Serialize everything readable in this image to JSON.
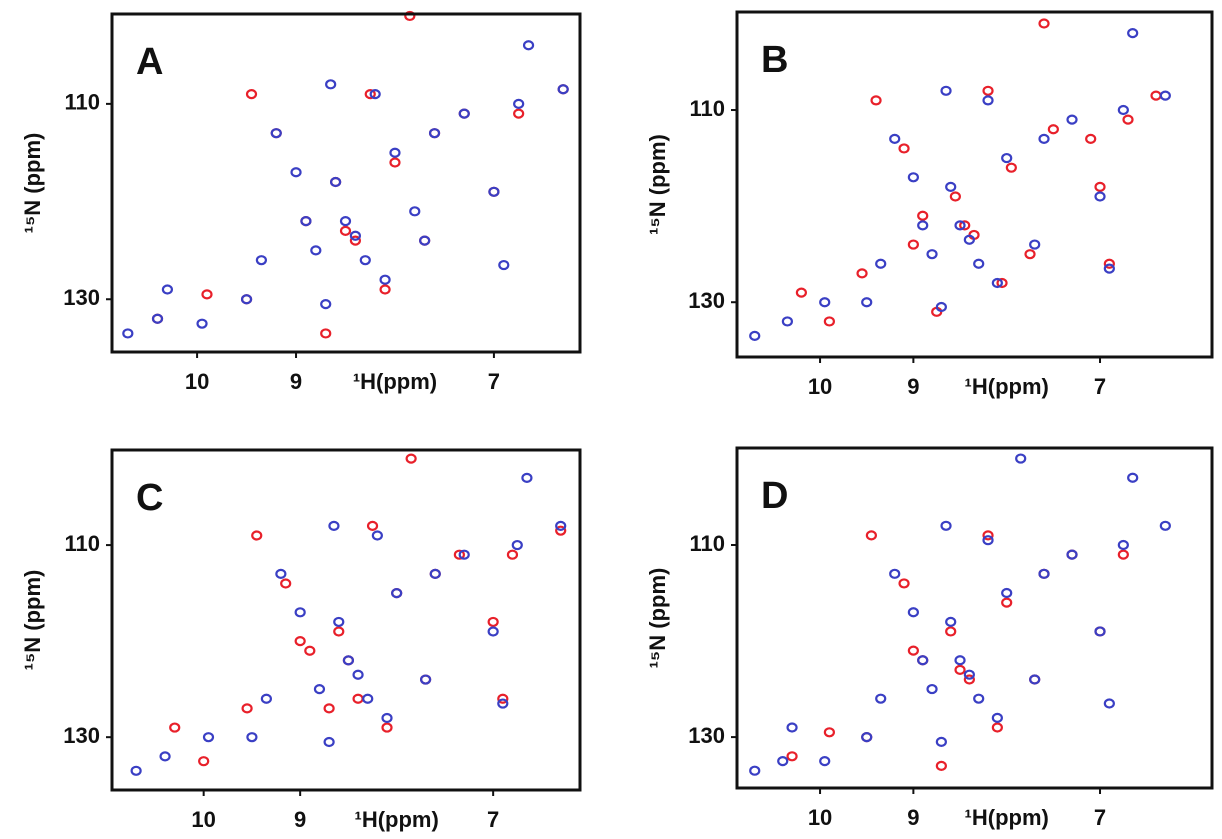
{
  "chart_data": [
    {
      "type": "scatter",
      "panel_label": "A",
      "xlabel": "¹H(ppm)",
      "ylabel": "¹⁵N (ppm)",
      "xlim": [
        10.86,
        6.13
      ],
      "ylim": [
        135.4,
        100.8
      ],
      "xticks": [
        10,
        9,
        7
      ],
      "yticks": [
        110,
        130
      ],
      "series": [
        {
          "color": "#e8202a",
          "x": [
            10.4,
            9.45,
            9.2,
            8.9,
            8.6,
            8.4,
            8.25,
            8.0,
            7.85,
            7.6,
            7.3,
            6.75,
            8.7,
            7.7,
            9.5,
            8.5,
            8.1,
            7.0,
            6.3,
            9.9
          ],
          "y": [
            132,
            109,
            113,
            122,
            118,
            124,
            109,
            116,
            101,
            113,
            111,
            111,
            133.5,
            124,
            130,
            123,
            129,
            119,
            108.5,
            129.5
          ]
        },
        {
          "color": "#3a3fc4",
          "x": [
            10.7,
            10.4,
            10.3,
            9.95,
            9.5,
            9.35,
            9.2,
            9.0,
            8.9,
            8.8,
            8.65,
            8.6,
            8.5,
            8.4,
            8.3,
            8.2,
            8.1,
            8.0,
            7.6,
            7.3,
            7.0,
            6.75,
            6.65,
            6.3,
            8.7,
            7.7,
            6.9,
            7.8
          ],
          "y": [
            133.5,
            132,
            129,
            132.5,
            130,
            126,
            113,
            117,
            122,
            125,
            108,
            118,
            122,
            123.5,
            126,
            109,
            128,
            115,
            113,
            111,
            119,
            110,
            104,
            108.5,
            130.5,
            124,
            126.5,
            121
          ]
        }
      ]
    },
    {
      "type": "scatter",
      "panel_label": "B",
      "xlabel": "¹H(ppm)",
      "ylabel": "¹⁵N (ppm)",
      "xlim": [
        10.89,
        5.8
      ],
      "ylim": [
        135.7,
        99.8
      ],
      "xticks": [
        10,
        9,
        7
      ],
      "yticks": [
        110,
        130
      ],
      "series": [
        {
          "color": "#e8202a",
          "x": [
            10.2,
            9.4,
            9.1,
            8.9,
            8.55,
            8.35,
            8.2,
            7.95,
            7.6,
            7.5,
            7.1,
            6.7,
            6.4,
            8.75,
            7.75,
            9.55,
            8.45,
            8.05,
            7.0,
            9.9,
            9.0,
            6.9
          ],
          "y": [
            129,
            109,
            114,
            121,
            119,
            123,
            108,
            116,
            101,
            112,
            113,
            111,
            108.5,
            131,
            125,
            127,
            122,
            128,
            118,
            132,
            124,
            126
          ]
        },
        {
          "color": "#3a3fc4",
          "x": [
            10.7,
            10.35,
            9.95,
            9.5,
            9.35,
            9.2,
            9.0,
            8.9,
            8.8,
            8.65,
            8.6,
            8.5,
            8.4,
            8.3,
            8.2,
            8.1,
            8.0,
            7.6,
            7.3,
            7.0,
            6.75,
            6.65,
            6.3,
            8.7,
            7.7,
            6.9
          ],
          "y": [
            133.5,
            132,
            130,
            130,
            126,
            113,
            117,
            122,
            125,
            108,
            118,
            122,
            123.5,
            126,
            109,
            128,
            115,
            113,
            111,
            119,
            110,
            102,
            108.5,
            130.5,
            124,
            126.5
          ]
        }
      ]
    },
    {
      "type": "scatter",
      "panel_label": "C",
      "xlabel": "¹H(ppm)",
      "ylabel": "¹⁵N (ppm)",
      "xlim": [
        10.95,
        6.1
      ],
      "ylim": [
        135.5,
        100.1
      ],
      "xticks": [
        10,
        9,
        7
      ],
      "yticks": [
        110,
        130
      ],
      "series": [
        {
          "color": "#e8202a",
          "x": [
            10.3,
            10.0,
            9.45,
            9.15,
            8.9,
            8.6,
            8.4,
            8.25,
            8.0,
            7.85,
            7.6,
            7.35,
            6.8,
            6.3,
            8.7,
            7.7,
            9.55,
            8.5,
            8.1,
            7.0,
            9.0,
            6.9
          ],
          "y": [
            129,
            132.5,
            109,
            114,
            121,
            119,
            126,
            108,
            115,
            101,
            113,
            111,
            111,
            108.5,
            127,
            124,
            127,
            122,
            129,
            118,
            120,
            126
          ]
        },
        {
          "color": "#3a3fc4",
          "x": [
            10.7,
            10.4,
            9.95,
            9.5,
            9.35,
            9.2,
            9.0,
            8.8,
            8.65,
            8.6,
            8.5,
            8.4,
            8.3,
            8.2,
            8.1,
            8.0,
            7.6,
            7.3,
            7.0,
            6.75,
            6.65,
            6.3,
            8.7,
            7.7,
            6.9
          ],
          "y": [
            133.5,
            132,
            130,
            130,
            126,
            113,
            117,
            125,
            108,
            118,
            122,
            123.5,
            126,
            109,
            128,
            115,
            113,
            111,
            119,
            110,
            103,
            108,
            130.5,
            124,
            126.5
          ]
        }
      ]
    },
    {
      "type": "scatter",
      "panel_label": "D",
      "xlabel": "¹H(ppm)",
      "ylabel": "¹⁵N (ppm)",
      "xlim": [
        10.89,
        5.8
      ],
      "ylim": [
        135.3,
        99.9
      ],
      "xticks": [
        10,
        9,
        7
      ],
      "yticks": [
        110,
        130
      ],
      "series": [
        {
          "color": "#e8202a",
          "x": [
            10.3,
            9.45,
            9.1,
            8.9,
            8.6,
            8.4,
            8.2,
            8.0,
            7.6,
            7.3,
            6.75,
            8.7,
            7.7,
            9.5,
            8.5,
            8.1,
            7.0,
            9.9,
            9.0
          ],
          "y": [
            132,
            109,
            114,
            122,
            119,
            124,
            109,
            116,
            113,
            111,
            111,
            133,
            124,
            130,
            123,
            129,
            119,
            129.5,
            121
          ]
        },
        {
          "color": "#3a3fc4",
          "x": [
            10.7,
            10.4,
            10.3,
            9.95,
            9.5,
            9.35,
            9.2,
            9.0,
            8.9,
            8.8,
            8.65,
            8.6,
            8.5,
            8.4,
            8.3,
            8.2,
            8.1,
            8.0,
            7.85,
            7.6,
            7.3,
            7.0,
            6.75,
            6.65,
            6.3,
            8.7,
            7.7,
            6.9
          ],
          "y": [
            133.5,
            132.5,
            129,
            132.5,
            130,
            126,
            113,
            117,
            122,
            125,
            108,
            118,
            122,
            123.5,
            126,
            109.5,
            128,
            115,
            101,
            113,
            111,
            119,
            110,
            103,
            108,
            130.5,
            124,
            126.5
          ]
        }
      ]
    }
  ]
}
